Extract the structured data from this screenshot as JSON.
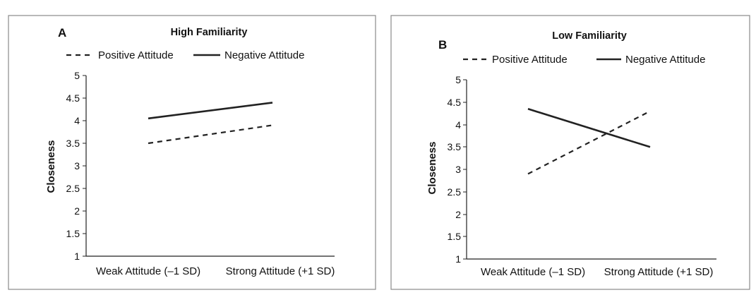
{
  "chart_data": [
    {
      "type": "line",
      "panel_letter": "A",
      "title": "High Familiarity",
      "ylabel": "Closeness",
      "xlabel": "",
      "ylim": [
        1,
        5
      ],
      "yticks": [
        "1",
        "1.5",
        "2",
        "2.5",
        "3",
        "3.5",
        "4",
        "4.5",
        "5"
      ],
      "categories": [
        "Weak Attitude (–1 SD)",
        "Strong Attitude (+1 SD)"
      ],
      "legend_position": "top",
      "series": [
        {
          "name": "Positive Attitude",
          "style": "dashed",
          "values": [
            3.5,
            3.9
          ]
        },
        {
          "name": "Negative Attitude",
          "style": "solid",
          "values": [
            4.05,
            4.4
          ]
        }
      ]
    },
    {
      "type": "line",
      "panel_letter": "B",
      "title": "Low Familiarity",
      "ylabel": "Closeness",
      "xlabel": "",
      "ylim": [
        1,
        5
      ],
      "yticks": [
        "1",
        "1.5",
        "2",
        "2.5",
        "3",
        "3.5",
        "4",
        "4.5",
        "5"
      ],
      "categories": [
        "Weak Attitude (–1 SD)",
        "Strong Attitude (+1 SD)"
      ],
      "legend_position": "top",
      "series": [
        {
          "name": "Positive Attitude",
          "style": "dashed",
          "values": [
            2.9,
            4.3
          ]
        },
        {
          "name": "Negative Attitude",
          "style": "solid",
          "values": [
            4.35,
            3.5
          ]
        }
      ]
    }
  ]
}
